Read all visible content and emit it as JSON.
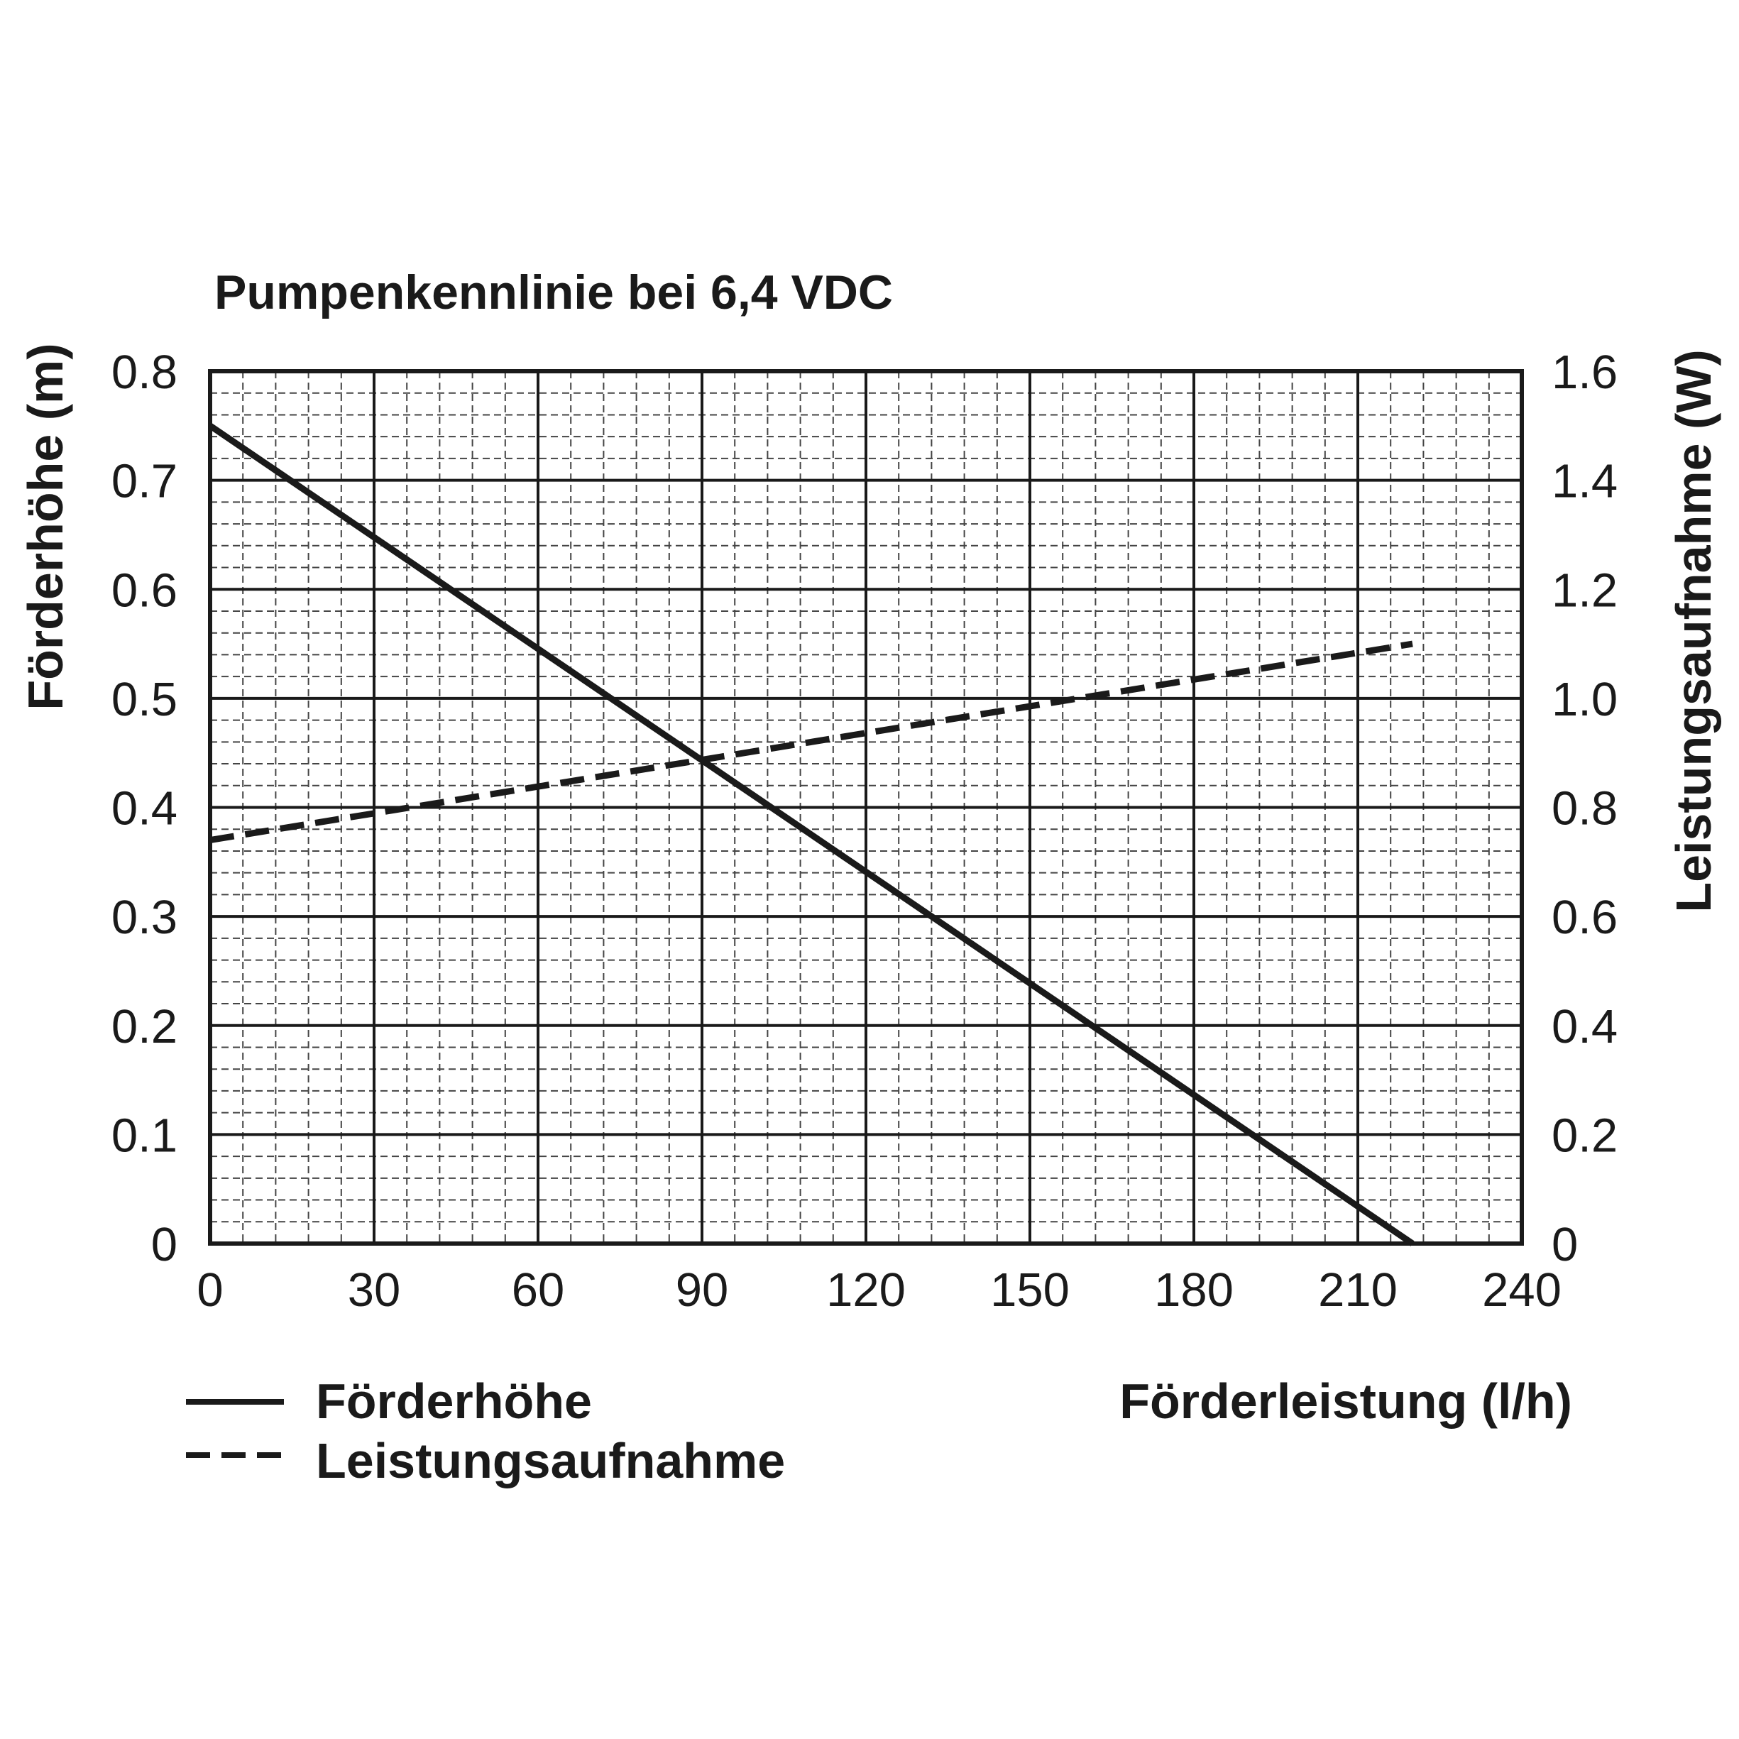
{
  "chart_data": {
    "type": "line",
    "title": "Pumpenkennlinie bei 6,4 VDC",
    "xlabel": "Förderleistung (l/h)",
    "ylabel_left": "Förderhöhe (m)",
    "ylabel_right": "Leistungsaufnahme (W)",
    "xlim": [
      0,
      240
    ],
    "ylim_left": [
      0,
      0.8
    ],
    "ylim_right": [
      0,
      1.6
    ],
    "x_ticks": [
      "0",
      "30",
      "60",
      "90",
      "120",
      "150",
      "180",
      "210",
      "240"
    ],
    "y_left_ticks": [
      "0",
      "0.1",
      "0.2",
      "0.3",
      "0.4",
      "0.5",
      "0.6",
      "0.7",
      "0.8"
    ],
    "y_right_ticks": [
      "0",
      "0.2",
      "0.4",
      "0.6",
      "0.8",
      "1.0",
      "1.2",
      "1.4",
      "1.6"
    ],
    "grid": true,
    "legend_position": "bottom-left",
    "series": [
      {
        "name": "Förderhöhe",
        "axis": "left",
        "style": "solid",
        "color": "#1a1a1a",
        "x": [
          0,
          220
        ],
        "y": [
          0.75,
          0.0
        ]
      },
      {
        "name": "Leistungsaufnahme",
        "axis": "right",
        "style": "dashed",
        "color": "#1a1a1a",
        "x": [
          0,
          220
        ],
        "y": [
          0.74,
          1.1
        ]
      }
    ]
  }
}
